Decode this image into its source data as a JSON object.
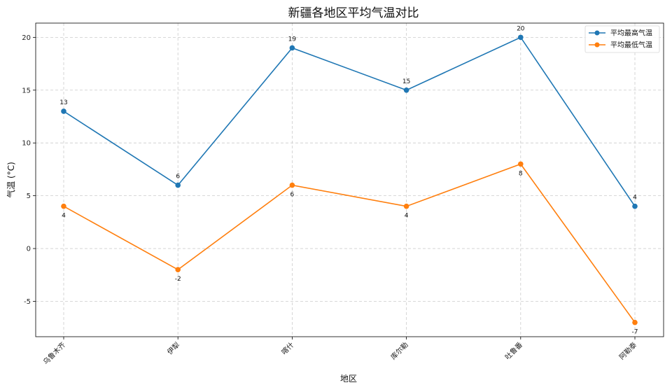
{
  "chart_data": {
    "type": "line",
    "title": "新疆各地区平均气温对比",
    "xlabel": "地区",
    "ylabel": "气温 (°C)",
    "categories": [
      "乌鲁木齐",
      "伊犁",
      "喀什",
      "库尔勒",
      "吐鲁番",
      "阿勒泰"
    ],
    "ylim": [
      -8.35,
      21.35
    ],
    "yticks": [
      -5,
      0,
      5,
      10,
      15,
      20
    ],
    "ytick_labels": [
      "-5",
      "0",
      "5",
      "10",
      "15",
      "20"
    ],
    "grid": true,
    "legend_position": "top-right",
    "series": [
      {
        "name": "平均最高气温",
        "color": "#1f77b4",
        "values": [
          13,
          6,
          19,
          15,
          20,
          4
        ],
        "value_labels": [
          "13",
          "6",
          "19",
          "15",
          "20",
          "4"
        ],
        "label_side": "above"
      },
      {
        "name": "平均最低气温",
        "color": "#ff7f0e",
        "values": [
          4,
          -2,
          6,
          4,
          8,
          -7
        ],
        "value_labels": [
          "4",
          "-2",
          "6",
          "4",
          "8",
          "-7"
        ],
        "label_side": "below"
      }
    ]
  }
}
